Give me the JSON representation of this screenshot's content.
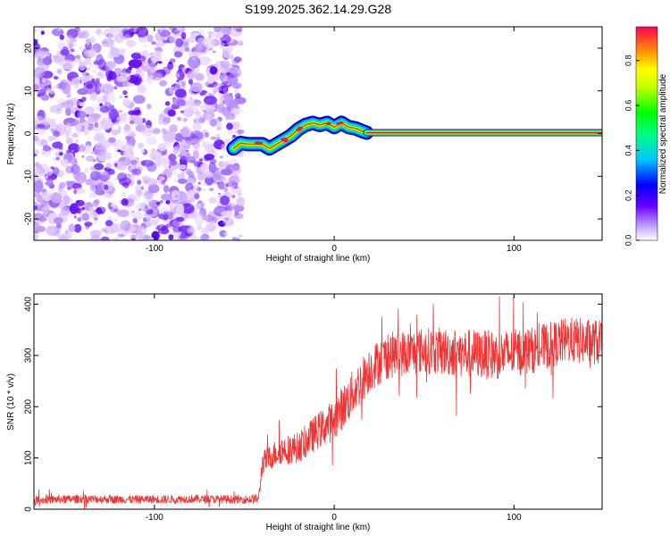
{
  "title": "S199.2025.362.14.29.G28",
  "chart_data": [
    {
      "type": "heatmap",
      "xlabel": "Height of straight line (km)",
      "ylabel": "Frequency (Hz)",
      "xlim": [
        -167,
        149
      ],
      "ylim": [
        -25,
        25
      ],
      "xticks": [
        -100,
        0,
        100
      ],
      "yticks": [
        -20,
        -10,
        0,
        10,
        20
      ],
      "noise_region_x": [
        -167,
        -52
      ],
      "ridge_x": [
        -56,
        -52,
        -48,
        -44,
        -40,
        -36,
        -32,
        -28,
        -24,
        -20,
        -16,
        -12,
        -8,
        -4,
        0,
        4,
        8,
        12,
        16,
        18
      ],
      "ridge_freq": [
        -3.5,
        -2.2,
        -2.5,
        -2.5,
        -2.5,
        -3.5,
        -2.5,
        -1.5,
        -0.5,
        1.0,
        2.0,
        2.5,
        2.0,
        2.5,
        1.5,
        2.5,
        1.5,
        1.2,
        0.5,
        0.2
      ],
      "line_x": [
        18,
        149
      ],
      "line_freq": 0.2,
      "colorbar": {
        "label": "Normalized spectral amplitude",
        "range": [
          0,
          0.95
        ],
        "ticks": [
          0.0,
          0.2,
          0.4,
          0.6,
          0.8
        ],
        "tick_labels": [
          "0.0",
          "0.2",
          "0.4",
          "0.6",
          "0.8"
        ]
      }
    },
    {
      "type": "line",
      "xlabel": "Height of straight line (km)",
      "ylabel": "SNR (10 * v/v)",
      "xlim": [
        -167,
        149
      ],
      "ylim": [
        0,
        420
      ],
      "xticks": [
        -100,
        0,
        100
      ],
      "yticks": [
        0,
        100,
        200,
        300,
        400
      ],
      "color": "#ee3333",
      "series": [
        {
          "name": "SNR",
          "x": [
            -167,
            -140,
            -110,
            -80,
            -50,
            -42,
            -40,
            -30,
            -20,
            -10,
            0,
            10,
            20,
            30,
            50,
            70,
            90,
            110,
            130,
            149
          ],
          "values": [
            18,
            20,
            19,
            20,
            19,
            20,
            90,
            115,
            120,
            150,
            175,
            225,
            275,
            300,
            310,
            305,
            300,
            310,
            330,
            325
          ],
          "noise": [
            8,
            8,
            8,
            8,
            8,
            10,
            22,
            28,
            30,
            35,
            40,
            45,
            45,
            45,
            45,
            48,
            48,
            45,
            45,
            45
          ]
        }
      ]
    }
  ]
}
